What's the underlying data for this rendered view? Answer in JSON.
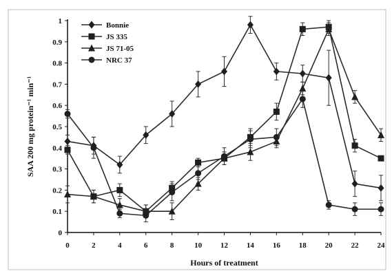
{
  "chart_data": {
    "type": "line",
    "title": "",
    "xlabel": "Hours of treatment",
    "ylabel": "SAA 200 mg protein⁻¹ min⁻¹",
    "x": [
      0,
      2,
      4,
      6,
      8,
      10,
      12,
      14,
      16,
      18,
      20,
      22,
      24
    ],
    "xlim": [
      0,
      24
    ],
    "ylim": [
      0,
      1
    ],
    "yticks": [
      "0",
      "0.1",
      "0.2",
      "0.3",
      "0.4",
      "0.5",
      "0.6",
      "0.7",
      "0.8",
      "0.9",
      "1"
    ],
    "xticks": [
      "0",
      "2",
      "4",
      "6",
      "8",
      "10",
      "12",
      "14",
      "16",
      "18",
      "20",
      "22",
      "24"
    ],
    "grid": false,
    "legend_position": "top-left",
    "series": [
      {
        "name": "Bonnie",
        "marker": "diamond",
        "values": [
          0.43,
          0.41,
          0.32,
          0.46,
          0.56,
          0.7,
          0.76,
          0.98,
          0.76,
          0.75,
          0.73,
          0.23,
          0.21
        ],
        "errors": [
          0.03,
          0.04,
          0.04,
          0.04,
          0.06,
          0.06,
          0.07,
          0.04,
          0.04,
          0.04,
          0.13,
          0.06,
          0.06
        ]
      },
      {
        "name": "JS 335",
        "marker": "square",
        "values": [
          0.39,
          0.17,
          0.2,
          0.1,
          0.21,
          0.33,
          0.35,
          0.45,
          0.57,
          0.96,
          0.97,
          0.41,
          0.35
        ],
        "errors": [
          0.02,
          0.03,
          0.03,
          0.03,
          0.03,
          0.02,
          0.03,
          0.04,
          0.04,
          0.03,
          0.03,
          0.03,
          0.01
        ]
      },
      {
        "name": "JS 71-05",
        "marker": "triangle",
        "values": [
          0.18,
          0.17,
          0.13,
          0.1,
          0.1,
          0.23,
          0.35,
          0.38,
          0.43,
          0.68,
          0.96,
          0.64,
          0.46
        ],
        "errors": [
          0.04,
          0.03,
          0.03,
          0.03,
          0.04,
          0.03,
          0.03,
          0.04,
          0.03,
          0.03,
          0.03,
          0.03,
          0.03
        ]
      },
      {
        "name": "NRC 37",
        "marker": "circle",
        "values": [
          0.56,
          0.4,
          0.09,
          0.08,
          0.19,
          0.28,
          0.36,
          0.44,
          0.45,
          0.63,
          0.13,
          0.11,
          0.11
        ],
        "errors": [
          0.02,
          0.05,
          0.02,
          0.03,
          0.04,
          0.03,
          0.04,
          0.04,
          0.04,
          0.04,
          0.02,
          0.03,
          0.03
        ]
      }
    ]
  }
}
